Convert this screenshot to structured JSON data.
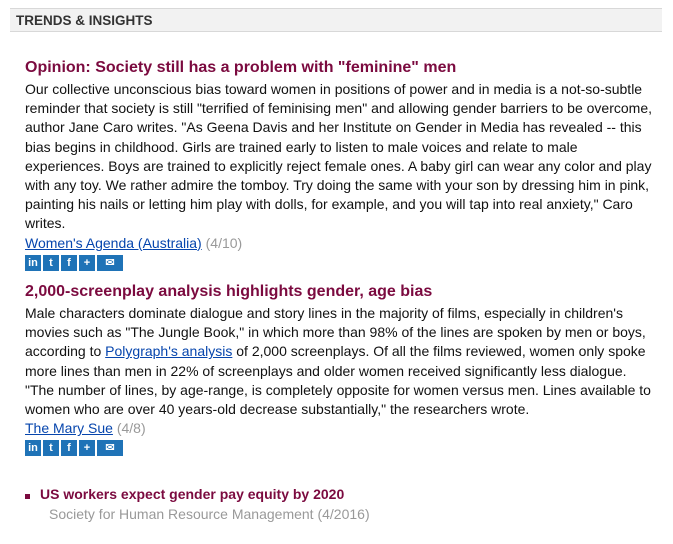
{
  "header": {
    "title": "TRENDS & INSIGHTS"
  },
  "articles": [
    {
      "title": "Opinion: Society still has a problem with \"feminine\" men",
      "body": "Our collective unconscious bias toward women in positions of power and in media is a not-so-subtle reminder that society is still \"terrified of feminising men\" and allowing gender barriers to be overcome, author Jane Caro writes. \"As Geena Davis and her Institute on Gender in Media has revealed -- this bias begins in childhood. Girls are trained early to listen to male voices and relate to male experiences. Boys are trained to explicitly reject female ones. A baby girl can wear any color and play with any toy. We rather admire the tomboy. Try doing the same with your son by dressing him in pink, painting his nails or letting him play with dolls, for example, and you will tap into real anxiety,\" Caro writes.",
      "source": "Women's Agenda (Australia)",
      "date": "(4/10)"
    },
    {
      "title": "2,000-screenplay analysis highlights gender, age bias",
      "body_pre": "Male characters dominate dialogue and story lines in the majority of films, especially in children's movies such as \"The Jungle Book,\" in which more than 98% of the lines are spoken by men or boys, according to ",
      "body_link": "Polygraph's analysis",
      "body_post": " of 2,000 screenplays. Of all the films reviewed, women only spoke more lines than men in 22% of screenplays and older women received significantly less dialogue. \"The number of lines, by age-range, is completely opposite for women versus men. Lines available to women who are over 40 years-old decrease substantially,\" the researchers wrote.",
      "source": "The Mary Sue",
      "date": "(4/8)"
    }
  ],
  "share": {
    "linkedin": "in",
    "twitter": "t",
    "facebook": "f",
    "more": "+",
    "email": "✉",
    "color": "#1f73b7"
  },
  "bullet": {
    "title": "US workers expect gender pay equity by 2020",
    "source": "Society for Human Resource Management (4/2016)"
  }
}
